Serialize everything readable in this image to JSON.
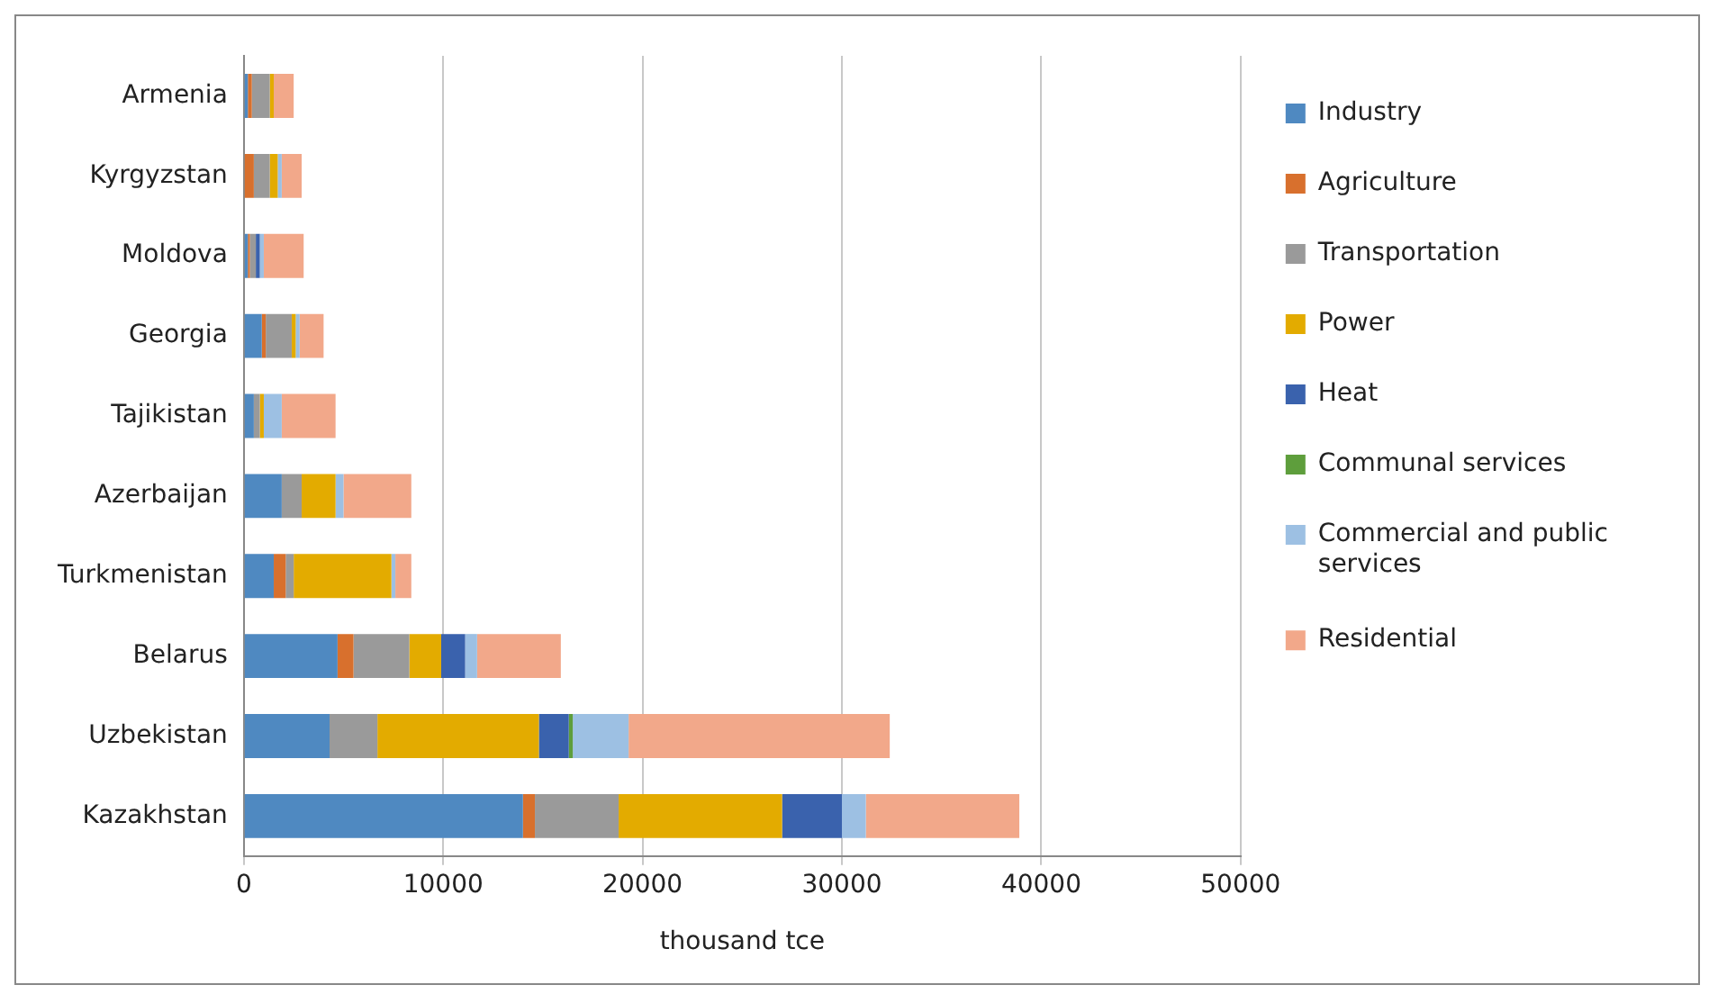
{
  "chart_data": {
    "type": "bar",
    "orientation": "horizontal",
    "stacked": true,
    "xlabel": "thousand tce",
    "categories": [
      "Armenia",
      "Kyrgyzstan",
      "Moldova",
      "Georgia",
      "Tajikistan",
      "Azerbaijan",
      "Turkmenistan",
      "Belarus",
      "Uzbekistan",
      "Kazakhstan"
    ],
    "xlim": [
      0,
      50000
    ],
    "xticks": [
      0,
      10000,
      20000,
      30000,
      40000,
      50000
    ],
    "grid": "x",
    "legend": "right",
    "series": [
      {
        "name": "Industry",
        "color": "#4f89c1",
        "values": [
          200,
          0,
          200,
          900,
          500,
          1900,
          1500,
          4700,
          4300,
          14000
        ]
      },
      {
        "name": "Agriculture",
        "color": "#d8702d",
        "values": [
          200,
          500,
          100,
          200,
          0,
          0,
          600,
          800,
          0,
          600
        ]
      },
      {
        "name": "Transportation",
        "color": "#9a9a9a",
        "values": [
          900,
          800,
          300,
          1300,
          300,
          1000,
          400,
          2800,
          2400,
          4200
        ]
      },
      {
        "name": "Power",
        "color": "#e3ab00",
        "values": [
          200,
          400,
          0,
          200,
          200,
          1700,
          4900,
          1600,
          8100,
          8200
        ]
      },
      {
        "name": "Heat",
        "color": "#3a62ad",
        "values": [
          0,
          0,
          200,
          0,
          0,
          0,
          0,
          1200,
          1500,
          3000
        ]
      },
      {
        "name": "Communal services",
        "color": "#5e9e3c",
        "values": [
          0,
          0,
          0,
          0,
          0,
          0,
          0,
          0,
          200,
          0
        ]
      },
      {
        "name": "Commercial and public services",
        "color": "#9dc0e3",
        "values": [
          0,
          200,
          200,
          200,
          900,
          400,
          200,
          600,
          2800,
          1200
        ]
      },
      {
        "name": "Residential",
        "color": "#f2a88a",
        "values": [
          1000,
          1000,
          2000,
          1200,
          2700,
          3400,
          800,
          4200,
          13100,
          7700
        ]
      }
    ]
  }
}
